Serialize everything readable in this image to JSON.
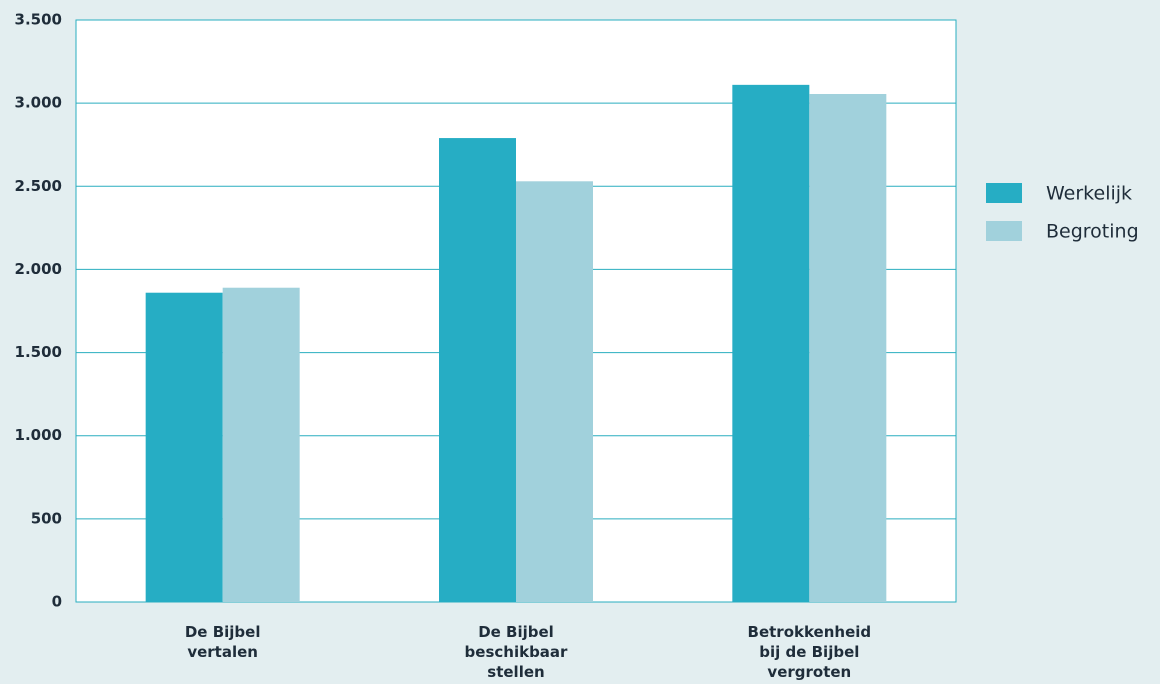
{
  "chart_data": {
    "type": "bar",
    "categories": [
      "De Bijbel vertalen",
      "De Bijbel beschikbaar stellen",
      "Betrokkenheid bij de Bijbel vergroten"
    ],
    "series": [
      {
        "name": "Werkelijk",
        "color": "#26adc4",
        "values": [
          1860,
          2790,
          3110
        ]
      },
      {
        "name": "Begroting",
        "color": "#a1d1dc",
        "values": [
          1890,
          2530,
          3055
        ]
      }
    ],
    "ylim": [
      0,
      3500
    ],
    "yticks": [
      0,
      500,
      {
        "value": 1000,
        "label": "1.000"
      },
      {
        "value": 1500,
        "label": "1.500"
      },
      {
        "value": 2000,
        "label": "2.000"
      },
      {
        "value": 2500,
        "label": "2.500"
      },
      {
        "value": 3000,
        "label": "3.000"
      },
      {
        "value": 3500,
        "label": "3.500"
      }
    ],
    "grid": true,
    "legend": "right"
  }
}
